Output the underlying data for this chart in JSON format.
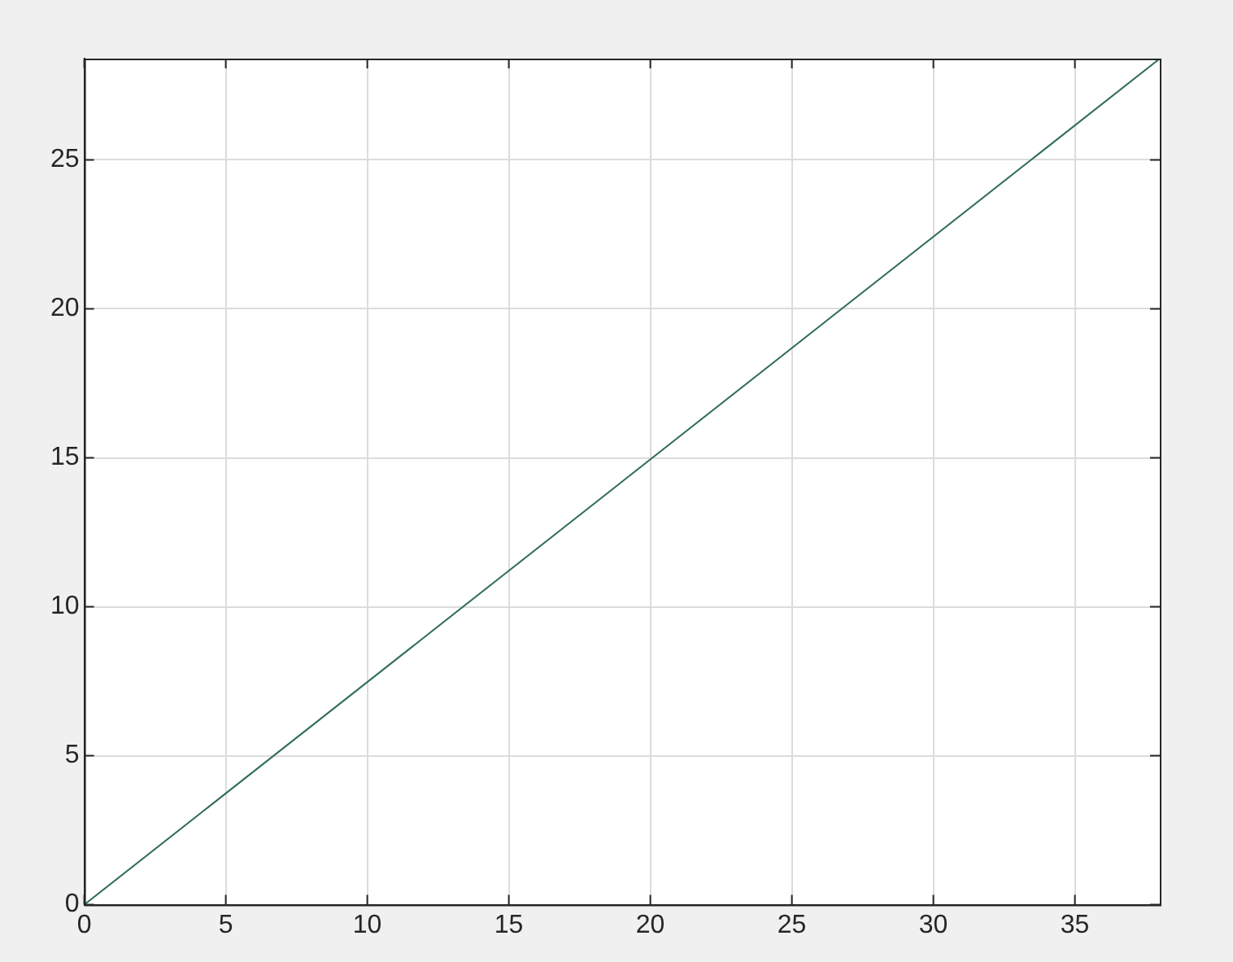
{
  "chart_data": {
    "type": "line",
    "x": [
      0,
      38
    ],
    "series": [
      {
        "color": "#2e6b5e",
        "values": [
          0,
          28.4
        ]
      }
    ],
    "xlim": [
      0,
      38
    ],
    "ylim": [
      0,
      28.4
    ],
    "xticks": [
      0,
      5,
      10,
      15,
      20,
      25,
      30,
      35
    ],
    "yticks": [
      0,
      5,
      10,
      15,
      20,
      25
    ],
    "grid": true,
    "legend": false,
    "marker": "none",
    "line_style": "solid"
  }
}
